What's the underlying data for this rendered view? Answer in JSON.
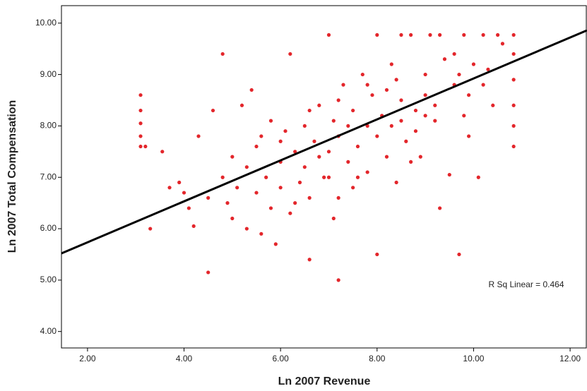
{
  "chart_data": {
    "type": "scatter",
    "x_label": "Ln 2007 Revenue",
    "y_label": "Ln 2007 Total Compensation",
    "annotation": "R Sq Linear = 0.464",
    "color": "#e3262b",
    "xlim": [
      1.46,
      12.35
    ],
    "ylim": [
      3.68,
      10.34
    ],
    "xticks": [
      {
        "value": 2,
        "label": "2.00"
      },
      {
        "value": 4,
        "label": "4.00"
      },
      {
        "value": 6,
        "label": "6.00"
      },
      {
        "value": 8,
        "label": "8.00"
      },
      {
        "value": 10,
        "label": "10.00"
      },
      {
        "value": 12,
        "label": "12.00"
      }
    ],
    "yticks": [
      {
        "value": 4,
        "label": "4.00"
      },
      {
        "value": 5,
        "label": "5.00"
      },
      {
        "value": 6,
        "label": "6.00"
      },
      {
        "value": 7,
        "label": "7.00"
      },
      {
        "value": 8,
        "label": "8.00"
      },
      {
        "value": 9,
        "label": "9.00"
      },
      {
        "value": 10,
        "label": "10.00"
      }
    ],
    "fit_line": {
      "x": [
        1.46,
        12.35
      ],
      "y": [
        5.52,
        9.86
      ],
      "color": "#000000"
    },
    "x": [
      3.1,
      3.1,
      3.1,
      3.1,
      3.1,
      3.2,
      3.3,
      3.55,
      3.7,
      3.9,
      4.0,
      4.1,
      4.2,
      4.3,
      4.5,
      4.5,
      4.6,
      4.8,
      4.8,
      4.9,
      5.0,
      5.1,
      5.2,
      5.3,
      5.3,
      5.4,
      5.5,
      5.5,
      5.6,
      5.7,
      5.8,
      5.8,
      5.9,
      6.0,
      6.0,
      6.1,
      6.2,
      6.2,
      6.3,
      6.4,
      6.5,
      6.5,
      6.6,
      6.6,
      6.7,
      6.8,
      6.9,
      7.0,
      7.0,
      7.1,
      7.1,
      7.2,
      7.2,
      7.3,
      7.4,
      7.5,
      7.5,
      7.6,
      7.7,
      7.8,
      7.8,
      7.9,
      8.0,
      8.0,
      8.1,
      8.2,
      8.3,
      8.3,
      8.4,
      8.5,
      8.5,
      8.6,
      8.7,
      8.8,
      8.9,
      9.0,
      9.0,
      9.1,
      9.2,
      9.3,
      9.4,
      9.5,
      9.6,
      9.7,
      9.8,
      9.9,
      10.0,
      10.1,
      10.2,
      10.4,
      10.6,
      10.83,
      10.83,
      10.83,
      10.83,
      10.83,
      10.83,
      7.0,
      7.2,
      7.8,
      8.5,
      8.7,
      9.0,
      9.3,
      9.6,
      9.9,
      10.2,
      10.5,
      6.6,
      7.2,
      8.0,
      9.7,
      6.0,
      6.8,
      7.4,
      8.2,
      8.8,
      5.0,
      5.6,
      6.3,
      7.6,
      8.4,
      9.2,
      9.8,
      10.3
    ],
    "values": [
      8.6,
      8.3,
      8.05,
      7.8,
      7.6,
      7.6,
      6.0,
      7.5,
      6.8,
      6.9,
      6.7,
      6.4,
      6.05,
      7.8,
      5.15,
      6.6,
      8.3,
      9.4,
      7.0,
      6.5,
      7.4,
      6.8,
      8.4,
      6.0,
      7.2,
      8.7,
      6.7,
      7.6,
      5.9,
      7.0,
      6.4,
      8.1,
      5.7,
      7.3,
      6.8,
      7.9,
      9.4,
      6.3,
      7.5,
      6.9,
      8.0,
      7.2,
      5.4,
      6.6,
      7.7,
      8.4,
      7.0,
      9.77,
      7.5,
      8.1,
      6.2,
      5.0,
      7.8,
      8.8,
      7.3,
      6.8,
      8.3,
      7.6,
      9.0,
      7.1,
      8.0,
      8.6,
      5.5,
      7.8,
      8.2,
      7.4,
      9.2,
      8.0,
      6.9,
      9.77,
      8.5,
      7.7,
      9.77,
      8.3,
      7.4,
      9.0,
      8.6,
      9.77,
      8.1,
      6.4,
      9.3,
      7.05,
      8.8,
      5.5,
      9.77,
      7.8,
      9.2,
      7.0,
      9.77,
      8.4,
      9.6,
      9.77,
      9.4,
      8.9,
      8.4,
      8.0,
      7.6,
      7.0,
      8.5,
      8.8,
      8.1,
      7.3,
      8.2,
      9.77,
      9.4,
      8.6,
      8.8,
      9.77,
      8.3,
      6.6,
      9.77,
      9.0,
      7.7,
      7.4,
      8.0,
      8.7,
      7.9,
      6.2,
      7.8,
      6.5,
      7.0,
      8.9,
      8.4,
      8.2,
      9.1
    ]
  }
}
